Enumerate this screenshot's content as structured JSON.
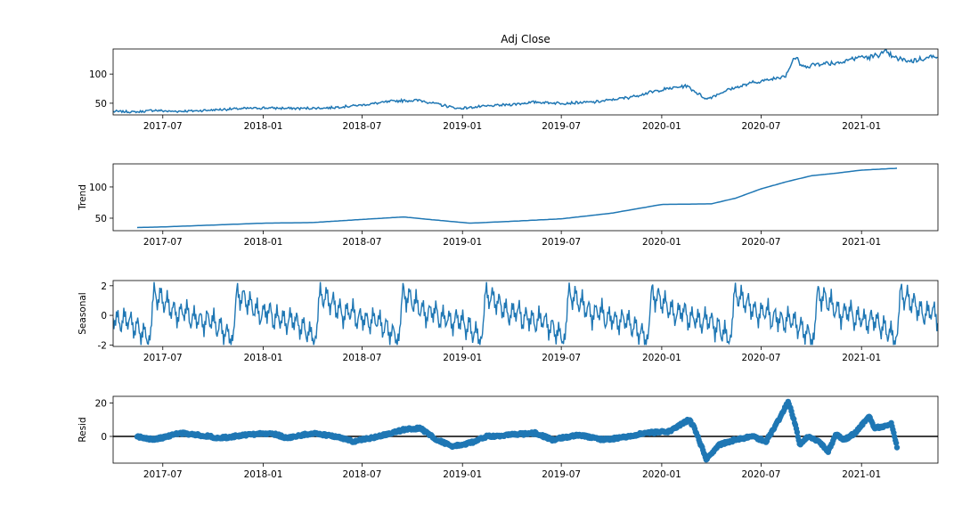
{
  "figure": {
    "title": "Adj Close",
    "line_color": "#1f77b4",
    "axis_color": "#000000",
    "background": "#ffffff"
  },
  "chart_data": [
    {
      "id": "observed",
      "type": "line",
      "title": "Adj Close",
      "ylabel": "",
      "x_range": [
        "2017-04-01",
        "2021-05-21"
      ],
      "ylim": [
        30,
        143
      ],
      "yticks": [
        50,
        100
      ],
      "xticks": [
        "2017-07",
        "2018-01",
        "2018-07",
        "2019-01",
        "2019-07",
        "2020-01",
        "2020-07",
        "2021-01"
      ],
      "series": [
        {
          "x": [
            "2017-04-01",
            "2017-05-15",
            "2017-06-15",
            "2017-07-15",
            "2017-09-01",
            "2017-11-01",
            "2018-01-01",
            "2018-03-01",
            "2018-05-01",
            "2018-07-01",
            "2018-09-01",
            "2018-10-15",
            "2018-12-24",
            "2019-02-01",
            "2019-04-01",
            "2019-05-15",
            "2019-07-01",
            "2019-09-01",
            "2019-11-01",
            "2020-01-01",
            "2020-02-15",
            "2020-03-23",
            "2020-05-01",
            "2020-06-15",
            "2020-07-15",
            "2020-08-15",
            "2020-09-01",
            "2020-09-15",
            "2020-10-15",
            "2020-11-15",
            "2021-01-01",
            "2021-01-15",
            "2021-02-15",
            "2021-03-01",
            "2021-04-01",
            "2021-05-21"
          ],
          "y": [
            36,
            35,
            38,
            36,
            37,
            40,
            42,
            41,
            42,
            47,
            54,
            55,
            41,
            44,
            48,
            52,
            50,
            52,
            60,
            73,
            80,
            57,
            73,
            85,
            90,
            98,
            130,
            112,
            118,
            119,
            130,
            128,
            138,
            128,
            122,
            132
          ]
        }
      ]
    },
    {
      "id": "trend",
      "type": "line",
      "title": "",
      "ylabel": "Trend",
      "x_range": [
        "2017-04-01",
        "2021-05-21"
      ],
      "ylim": [
        30,
        137
      ],
      "yticks": [
        50,
        100
      ],
      "xticks": [
        "2017-07",
        "2018-01",
        "2018-07",
        "2019-01",
        "2019-07",
        "2020-01",
        "2020-07",
        "2021-01"
      ],
      "series": [
        {
          "x": [
            "2017-05-15",
            "2017-07-01",
            "2017-10-01",
            "2018-01-01",
            "2018-04-01",
            "2018-07-01",
            "2018-09-15",
            "2018-11-01",
            "2019-01-15",
            "2019-04-01",
            "2019-07-01",
            "2019-10-01",
            "2020-01-01",
            "2020-04-01",
            "2020-05-15",
            "2020-07-01",
            "2020-08-15",
            "2020-10-01",
            "2020-11-15",
            "2021-01-01",
            "2021-03-08"
          ],
          "y": [
            35,
            36,
            39,
            42,
            43,
            48,
            52,
            48,
            42,
            45,
            49,
            58,
            72,
            73,
            82,
            97,
            108,
            118,
            122,
            127,
            130
          ]
        }
      ]
    },
    {
      "id": "seasonal",
      "type": "line",
      "title": "",
      "ylabel": "Seasonal",
      "x_range": [
        "2017-04-01",
        "2021-05-21"
      ],
      "ylim": [
        -2.1,
        2.35
      ],
      "yticks": [
        -2,
        0,
        2
      ],
      "xticks": [
        "2017-07",
        "2018-01",
        "2018-07",
        "2019-01",
        "2019-07",
        "2020-01",
        "2020-07",
        "2021-01"
      ],
      "period_days": 152,
      "profile": {
        "phase": [
          0,
          0.04,
          0.08,
          0.12,
          0.16,
          0.2,
          0.24,
          0.28,
          0.32,
          0.36,
          0.4,
          0.44,
          0.48,
          0.52,
          0.56,
          0.6,
          0.64,
          0.68,
          0.72,
          0.76,
          0.8,
          0.84,
          0.88,
          0.92,
          0.96,
          1
        ],
        "value": [
          2.2,
          0.5,
          1.9,
          0.2,
          1.5,
          -0.2,
          1.0,
          -0.7,
          0.8,
          -0.3,
          0.9,
          -1.0,
          0.5,
          -0.8,
          0.3,
          -1.2,
          0.4,
          -0.9,
          0.2,
          -1.5,
          -0.1,
          -1.8,
          -0.6,
          -2.0,
          -1.2,
          2.2
        ]
      },
      "phase_anchor": "2017-06-15"
    },
    {
      "id": "resid",
      "type": "scatter",
      "title": "",
      "ylabel": "Resid",
      "x_range": [
        "2017-04-01",
        "2021-05-21"
      ],
      "ylim": [
        -16,
        24
      ],
      "yticks": [
        0,
        20
      ],
      "xticks": [
        "2017-07",
        "2018-01",
        "2018-07",
        "2019-01",
        "2019-07",
        "2020-01",
        "2020-07",
        "2021-01"
      ],
      "zero_line": true,
      "series": [
        {
          "x": [
            "2017-05-15",
            "2017-06-15",
            "2017-08-01",
            "2017-09-01",
            "2017-10-15",
            "2017-12-01",
            "2018-01-15",
            "2018-02-15",
            "2018-04-01",
            "2018-05-15",
            "2018-06-15",
            "2018-08-01",
            "2018-09-15",
            "2018-10-15",
            "2018-11-15",
            "2018-12-15",
            "2019-01-15",
            "2019-02-15",
            "2019-04-01",
            "2019-05-15",
            "2019-06-15",
            "2019-08-01",
            "2019-09-15",
            "2019-10-15",
            "2019-12-01",
            "2020-01-15",
            "2020-02-20",
            "2020-03-01",
            "2020-03-23",
            "2020-04-15",
            "2020-05-15",
            "2020-06-15",
            "2020-07-10",
            "2020-08-01",
            "2020-08-20",
            "2020-09-01",
            "2020-09-10",
            "2020-09-25",
            "2020-10-15",
            "2020-11-01",
            "2020-11-15",
            "2020-12-01",
            "2020-12-20",
            "2021-01-15",
            "2021-01-25",
            "2021-02-10",
            "2021-02-25",
            "2021-03-08"
          ],
          "y": [
            0,
            -2,
            2,
            1,
            -1,
            1,
            2,
            -1,
            2,
            0,
            -3,
            0,
            4,
            5,
            -2,
            -6,
            -4,
            0,
            1,
            2,
            -2,
            1,
            -2,
            -1,
            2,
            3,
            10,
            5,
            -14,
            -5,
            -2,
            0,
            -3,
            9,
            21,
            8,
            -5,
            0,
            -3,
            -9,
            1,
            -2,
            2,
            12,
            5,
            6,
            8,
            -8
          ]
        }
      ]
    }
  ]
}
